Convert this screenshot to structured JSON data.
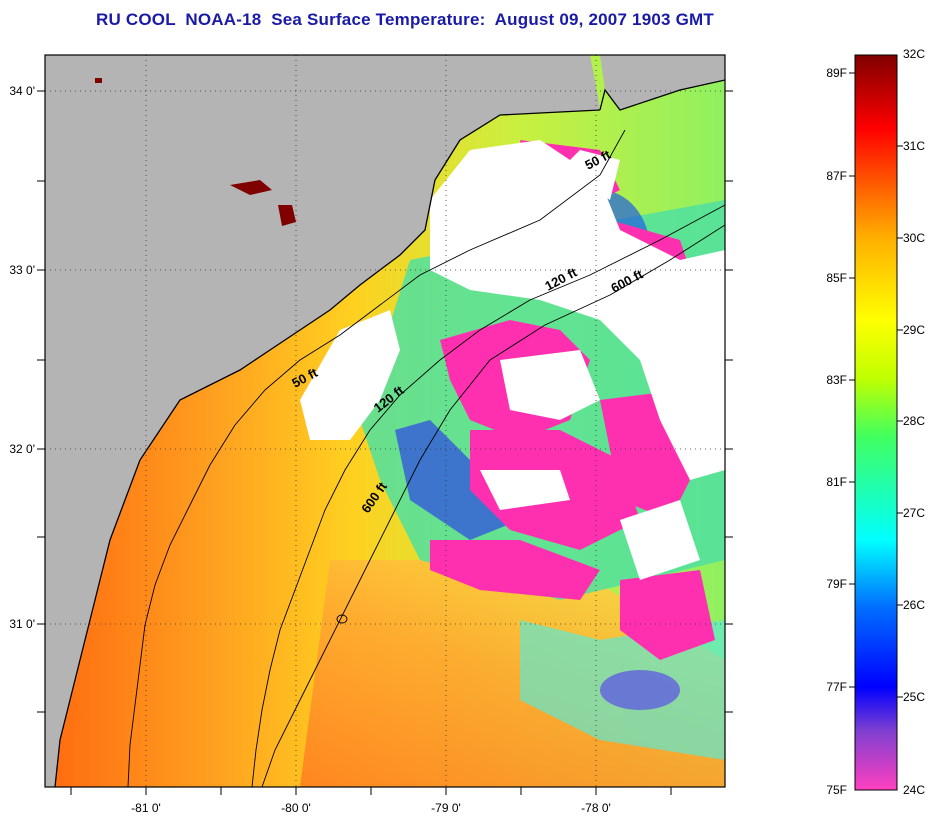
{
  "title": "RU COOL  NOAA-18  Sea Surface Temperature:  August 09, 2007 1903 GMT",
  "map": {
    "x_ticks": [
      "-81 0'",
      "-80 0'",
      "-79 0'",
      "-78 0'"
    ],
    "y_ticks": [
      "34 0'",
      "33 0'",
      "32 0'",
      "31 0'"
    ],
    "contour_labels": [
      "50 ft",
      "120 ft",
      "600 ft",
      "50 ft",
      "120 ft",
      "600 ft"
    ],
    "colors": {
      "land": "#b4b4b4",
      "cloud": "#ffffff",
      "coastline": "#000000"
    }
  },
  "colorbar": {
    "celsius_labels": [
      "32C",
      "31C",
      "30C",
      "29C",
      "28C",
      "27C",
      "26C",
      "25C",
      "24C"
    ],
    "fahrenheit_labels": [
      "89F",
      "87F",
      "85F",
      "83F",
      "81F",
      "79F",
      "77F",
      "75F"
    ],
    "colors": [
      "#ff40c0",
      "#8040d0",
      "#0000ff",
      "#0070ff",
      "#00ffff",
      "#40ff60",
      "#c0ff00",
      "#ffff00",
      "#ffb000",
      "#ff6000",
      "#ff0000",
      "#800000"
    ]
  }
}
